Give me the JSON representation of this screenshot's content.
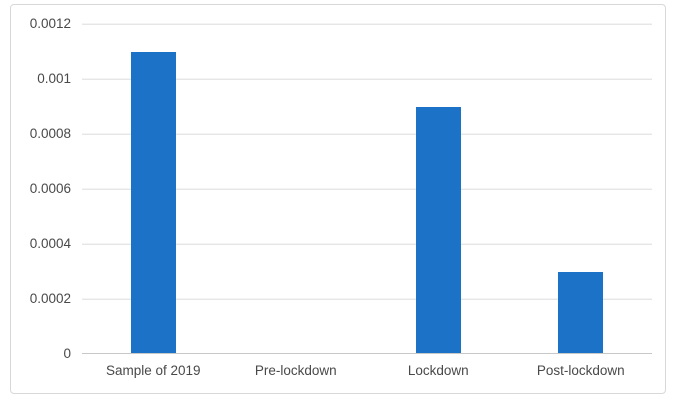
{
  "chart_data": {
    "type": "bar",
    "categories": [
      "Sample of 2019",
      "Pre-lockdown",
      "Lockdown",
      "Post-lockdown"
    ],
    "values": [
      0.0011,
      0,
      0.0009,
      0.0003
    ],
    "title": "",
    "xlabel": "",
    "ylabel": "",
    "ylim": [
      0,
      0.0012
    ],
    "yticks": [
      0,
      0.0002,
      0.0004,
      0.0006,
      0.0008,
      0.001,
      0.0012
    ],
    "ytick_labels": [
      "0",
      "0.0002",
      "0.0004",
      "0.0006",
      "0.0008",
      "0.001",
      "0.0012"
    ],
    "grid": true,
    "legend": false
  },
  "colors": {
    "bar": "#1c72c6",
    "gridline": "#dadada",
    "axis_line": "#c8c8c8",
    "text": "#494949",
    "frame_border": "#d8d8d8",
    "background": "#ffffff"
  }
}
